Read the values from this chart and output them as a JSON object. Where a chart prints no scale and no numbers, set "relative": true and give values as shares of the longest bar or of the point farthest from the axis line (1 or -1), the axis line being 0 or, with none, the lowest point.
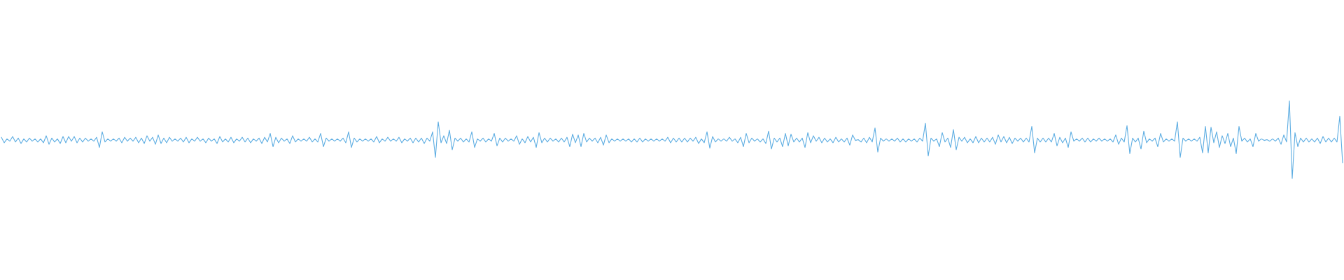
{
  "chart_data": {
    "type": "line",
    "relative": true,
    "color": "#5dade2",
    "categories": [
      null,
      null,
      null,
      null,
      null,
      null,
      null,
      null,
      null,
      null,
      null,
      null,
      null,
      null,
      null,
      null,
      null,
      null,
      null,
      null,
      null,
      null,
      null,
      null,
      null,
      null,
      null,
      null,
      null,
      null,
      null,
      null,
      null,
      null,
      null,
      null,
      null,
      null,
      null,
      null,
      null,
      null,
      null,
      null,
      null,
      null,
      null,
      null,
      null,
      null,
      null,
      null,
      null,
      null,
      null,
      null,
      null,
      null,
      null,
      null,
      null,
      null,
      null,
      null,
      null,
      null,
      null,
      null,
      null,
      null,
      null,
      null,
      null,
      null,
      null,
      null,
      null,
      null,
      null,
      null,
      null,
      null,
      null,
      null,
      null,
      null,
      null,
      null,
      null,
      null,
      null,
      null,
      null,
      null,
      null,
      null,
      null,
      null,
      null,
      null,
      null,
      null,
      null,
      null,
      null,
      null,
      null,
      null,
      null,
      null,
      null,
      null,
      null,
      null,
      null,
      null,
      null,
      null,
      null,
      null,
      null,
      null,
      null,
      null,
      null,
      null,
      null,
      null,
      null,
      null,
      null,
      null,
      null,
      null,
      null,
      null,
      null,
      null,
      null,
      null,
      null,
      null,
      null,
      null,
      null,
      null,
      null,
      null,
      null,
      null,
      null,
      null,
      null,
      null,
      null,
      null,
      null,
      null,
      null,
      null,
      null,
      null,
      null,
      null,
      null,
      null,
      null,
      null,
      null,
      null,
      null,
      null,
      null,
      null,
      null,
      null,
      null,
      null,
      null,
      null,
      null,
      null,
      null,
      null,
      null,
      null,
      null,
      null,
      null,
      null,
      null,
      null,
      null,
      null,
      null,
      null,
      null,
      null,
      null,
      null,
      null,
      null,
      null,
      null,
      null,
      null,
      null,
      null,
      null,
      null,
      null,
      null,
      null,
      null,
      null,
      null,
      null,
      null,
      null,
      null,
      null,
      null,
      null,
      null,
      null,
      null,
      null,
      null,
      null,
      null,
      null,
      null,
      null,
      null,
      null,
      null,
      null,
      null,
      null,
      null,
      null,
      null,
      null,
      null,
      null,
      null,
      null,
      null,
      null,
      null,
      null,
      null,
      null,
      null,
      null,
      null,
      null,
      null,
      null,
      null,
      null,
      null,
      null,
      null,
      null,
      null,
      null,
      null,
      null,
      null,
      null,
      null,
      null,
      null,
      null,
      null,
      null,
      null,
      null,
      null,
      null,
      null,
      null,
      null,
      null,
      null,
      null,
      null,
      null,
      null,
      null,
      null,
      null,
      null,
      null,
      null,
      null,
      null,
      null,
      null,
      null,
      null,
      null,
      null,
      null,
      null,
      null,
      null,
      null,
      null,
      null,
      null,
      null,
      null,
      null,
      null,
      null,
      null,
      null,
      null,
      null,
      null,
      null,
      null,
      null,
      null,
      null,
      null,
      null,
      null,
      null,
      null,
      null,
      null,
      null,
      null,
      null,
      null,
      null,
      null,
      null,
      null,
      null,
      null,
      null,
      null,
      null,
      null,
      null,
      null,
      null,
      null,
      null,
      null,
      null,
      null,
      null,
      null,
      null,
      null,
      null,
      null,
      null,
      null,
      null,
      null,
      null,
      null,
      null,
      null,
      null,
      null,
      null,
      null,
      null,
      null,
      null,
      null,
      null,
      null,
      null,
      null,
      null,
      null,
      null,
      null,
      null,
      null,
      null,
      null,
      null,
      null,
      null,
      null,
      null,
      null,
      null,
      null,
      null,
      null,
      null,
      null,
      null,
      null,
      null,
      null,
      null,
      null,
      null,
      null,
      null,
      null,
      null,
      null,
      null,
      null,
      null,
      null,
      null,
      null,
      null,
      null,
      null,
      null,
      null,
      null,
      null,
      null,
      null,
      null,
      null,
      null,
      null,
      null,
      null,
      null,
      null,
      null,
      null,
      null,
      null,
      null,
      null,
      null,
      null,
      null,
      null,
      null,
      null,
      null,
      null,
      null,
      null,
      null,
      null,
      null,
      null,
      null,
      null,
      null,
      null,
      null,
      null,
      null,
      null,
      null,
      null,
      null,
      null,
      null,
      null,
      null,
      null,
      null,
      null,
      null,
      null,
      null,
      null,
      null
    ],
    "values": [
      0.53,
      0.46,
      0.51,
      0.48,
      0.54,
      0.47,
      0.52,
      0.45,
      0.51,
      0.47,
      0.52,
      0.48,
      0.51,
      0.47,
      0.51,
      0.46,
      0.55,
      0.44,
      0.52,
      0.47,
      0.51,
      0.45,
      0.54,
      0.46,
      0.54,
      0.48,
      0.54,
      0.46,
      0.52,
      0.47,
      0.52,
      0.48,
      0.51,
      0.48,
      0.53,
      0.4,
      0.6,
      0.47,
      0.51,
      0.48,
      0.51,
      0.48,
      0.52,
      0.46,
      0.53,
      0.48,
      0.52,
      0.48,
      0.53,
      0.46,
      0.52,
      0.45,
      0.55,
      0.48,
      0.53,
      0.44,
      0.56,
      0.45,
      0.52,
      0.46,
      0.53,
      0.48,
      0.51,
      0.48,
      0.52,
      0.47,
      0.53,
      0.46,
      0.51,
      0.48,
      0.53,
      0.48,
      0.51,
      0.46,
      0.52,
      0.48,
      0.51,
      0.45,
      0.54,
      0.47,
      0.51,
      0.47,
      0.53,
      0.46,
      0.51,
      0.48,
      0.53,
      0.47,
      0.52,
      0.46,
      0.51,
      0.48,
      0.52,
      0.45,
      0.53,
      0.47,
      0.58,
      0.41,
      0.53,
      0.46,
      0.52,
      0.48,
      0.51,
      0.45,
      0.55,
      0.47,
      0.51,
      0.48,
      0.51,
      0.48,
      0.53,
      0.47,
      0.51,
      0.47,
      0.58,
      0.41,
      0.52,
      0.48,
      0.51,
      0.48,
      0.51,
      0.48,
      0.52,
      0.46,
      0.6,
      0.4,
      0.52,
      0.47,
      0.51,
      0.48,
      0.51,
      0.48,
      0.51,
      0.47,
      0.54,
      0.46,
      0.51,
      0.48,
      0.53,
      0.48,
      0.51,
      0.48,
      0.53,
      0.46,
      0.51,
      0.48,
      0.52,
      0.46,
      0.52,
      0.47,
      0.52,
      0.45,
      0.52,
      0.48,
      0.6,
      0.27,
      0.73,
      0.46,
      0.55,
      0.45,
      0.62,
      0.37,
      0.52,
      0.48,
      0.52,
      0.47,
      0.51,
      0.47,
      0.6,
      0.4,
      0.51,
      0.48,
      0.52,
      0.47,
      0.51,
      0.48,
      0.58,
      0.42,
      0.52,
      0.47,
      0.52,
      0.48,
      0.51,
      0.48,
      0.55,
      0.44,
      0.51,
      0.46,
      0.54,
      0.47,
      0.53,
      0.4,
      0.59,
      0.46,
      0.52,
      0.47,
      0.52,
      0.48,
      0.51,
      0.47,
      0.52,
      0.47,
      0.53,
      0.41,
      0.57,
      0.46,
      0.56,
      0.41,
      0.58,
      0.47,
      0.52,
      0.48,
      0.52,
      0.46,
      0.53,
      0.43,
      0.56,
      0.46,
      0.51,
      0.48,
      0.51,
      0.48,
      0.51,
      0.48,
      0.51,
      0.47,
      0.51,
      0.47,
      0.52,
      0.47,
      0.51,
      0.48,
      0.51,
      0.48,
      0.51,
      0.48,
      0.51,
      0.48,
      0.53,
      0.46,
      0.52,
      0.47,
      0.52,
      0.47,
      0.52,
      0.47,
      0.52,
      0.48,
      0.53,
      0.45,
      0.51,
      0.46,
      0.6,
      0.39,
      0.54,
      0.47,
      0.51,
      0.48,
      0.51,
      0.48,
      0.53,
      0.48,
      0.51,
      0.46,
      0.53,
      0.41,
      0.58,
      0.46,
      0.52,
      0.48,
      0.51,
      0.47,
      0.51,
      0.45,
      0.61,
      0.38,
      0.52,
      0.47,
      0.52,
      0.41,
      0.58,
      0.42,
      0.57,
      0.47,
      0.52,
      0.47,
      0.52,
      0.4,
      0.59,
      0.46,
      0.55,
      0.48,
      0.53,
      0.46,
      0.52,
      0.47,
      0.51,
      0.46,
      0.53,
      0.47,
      0.51,
      0.47,
      0.52,
      0.43,
      0.56,
      0.49,
      0.5,
      0.47,
      0.52,
      0.46,
      0.53,
      0.47,
      0.65,
      0.34,
      0.52,
      0.48,
      0.51,
      0.48,
      0.51,
      0.48,
      0.52,
      0.47,
      0.51,
      0.47,
      0.51,
      0.48,
      0.51,
      0.47,
      0.52,
      0.48,
      0.71,
      0.29,
      0.52,
      0.48,
      0.51,
      0.41,
      0.59,
      0.47,
      0.52,
      0.4,
      0.63,
      0.37,
      0.53,
      0.48,
      0.53,
      0.46,
      0.51,
      0.46,
      0.54,
      0.46,
      0.52,
      0.47,
      0.52,
      0.47,
      0.53,
      0.44,
      0.56,
      0.47,
      0.54,
      0.46,
      0.53,
      0.45,
      0.52,
      0.48,
      0.52,
      0.47,
      0.52,
      0.47,
      0.67,
      0.33,
      0.52,
      0.47,
      0.52,
      0.47,
      0.52,
      0.47,
      0.58,
      0.42,
      0.53,
      0.46,
      0.52,
      0.4,
      0.6,
      0.48,
      0.51,
      0.48,
      0.52,
      0.47,
      0.52,
      0.47,
      0.51,
      0.48,
      0.52,
      0.48,
      0.51,
      0.48,
      0.51,
      0.47,
      0.56,
      0.44,
      0.52,
      0.47,
      0.68,
      0.32,
      0.52,
      0.47,
      0.52,
      0.38,
      0.61,
      0.46,
      0.51,
      0.48,
      0.52,
      0.41,
      0.58,
      0.47,
      0.51,
      0.48,
      0.51,
      0.48,
      0.73,
      0.27,
      0.52,
      0.48,
      0.51,
      0.48,
      0.51,
      0.48,
      0.53,
      0.33,
      0.67,
      0.33,
      0.66,
      0.46,
      0.6,
      0.4,
      0.55,
      0.45,
      0.58,
      0.41,
      0.52,
      0.32,
      0.67,
      0.48,
      0.52,
      0.47,
      0.51,
      0.41,
      0.58,
      0.48,
      0.51,
      0.49,
      0.5,
      0.48,
      0.51,
      0.48,
      0.52,
      0.44,
      0.56,
      0.47,
      1,
      0,
      0.59,
      0.41,
      0.52,
      0.47,
      0.52,
      0.47,
      0.51,
      0.47,
      0.52,
      0.45,
      0.54,
      0.47,
      0.52,
      0.47,
      0.52,
      0.47,
      0.8,
      0.2
    ]
  }
}
